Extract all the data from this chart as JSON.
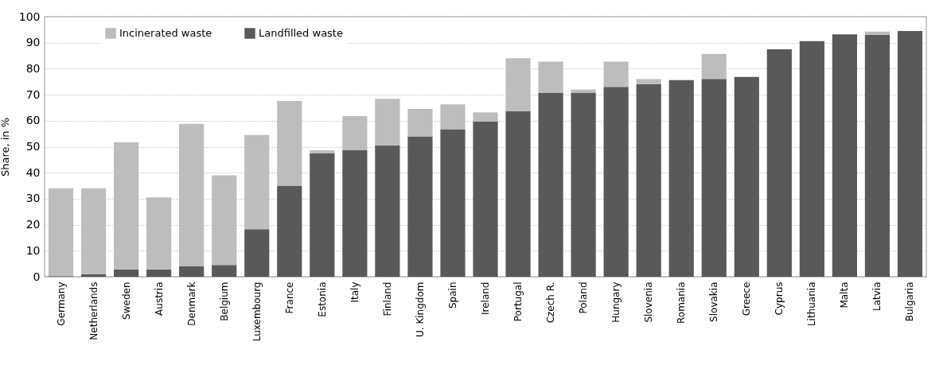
{
  "chart_data": {
    "type": "bar",
    "ylabel": "Share, in %",
    "stacked": true,
    "grid": "y",
    "legend": "top left",
    "categories": [
      "Germany",
      "Netherlands",
      "Sweden",
      "Austria",
      "Denmark",
      "Belgium",
      "Luxembourg",
      "France",
      "Estonia",
      "Italy",
      "Finland",
      "U. Kingdom",
      "Spain",
      "Ireland",
      "Portugal",
      "Czech R.",
      "Poland",
      "Hungary",
      "Slovenia",
      "Romania",
      "Slovakia",
      "Greece",
      "Cyprus",
      "Lithuania",
      "Malta",
      "Latvia",
      "Bulgaria"
    ],
    "series": [
      {
        "name": "Landfilled waste",
        "color": "#595959",
        "values": [
          0.2,
          1,
          2.8,
          2.8,
          4,
          4.5,
          18.3,
          35,
          47.4,
          48.8,
          50.5,
          54,
          56.7,
          59.7,
          63.7,
          70.8,
          70.8,
          73,
          74,
          75.6,
          76.1,
          76.8,
          87.5,
          90.6,
          93.2,
          93,
          94.5
        ]
      },
      {
        "name": "Incinerated waste",
        "color": "#bdbdbd",
        "values": [
          33.8,
          33,
          48.9,
          27.7,
          54.8,
          34.5,
          36.2,
          32.6,
          1.2,
          13,
          17.9,
          10.5,
          9.6,
          3.5,
          20.3,
          11.9,
          1.2,
          9.7,
          2,
          0,
          9.6,
          0,
          0,
          0,
          0,
          1.3,
          0
        ]
      }
    ],
    "ylim": [
      0,
      100
    ],
    "yticks": [
      0,
      10,
      20,
      30,
      40,
      50,
      60,
      70,
      80,
      90,
      100
    ]
  }
}
